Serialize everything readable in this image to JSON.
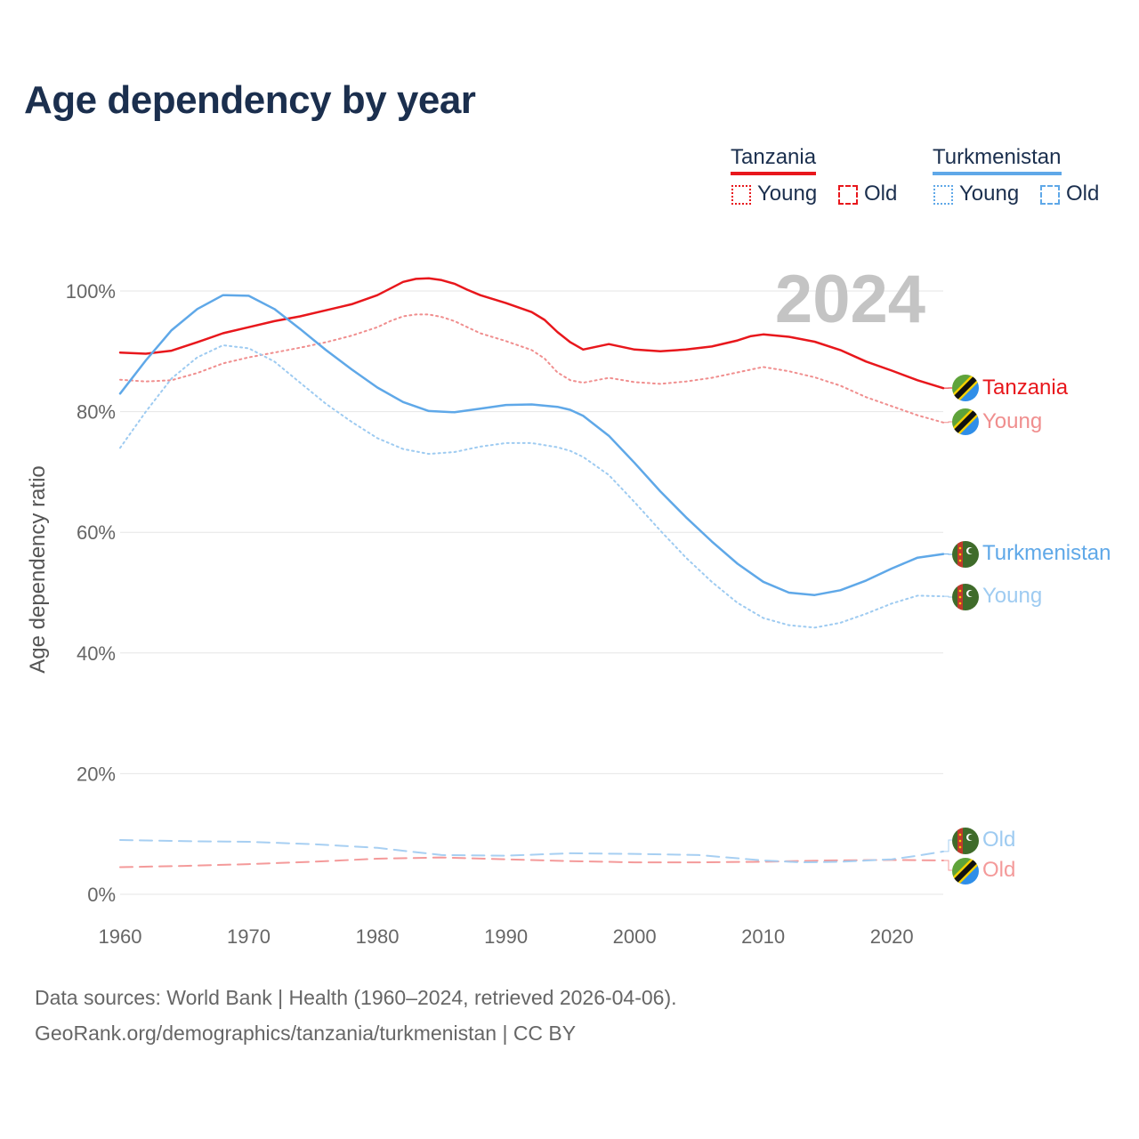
{
  "title": "Age dependency by year",
  "legend": {
    "countries": [
      {
        "name": "Tanzania",
        "color": "#e8171c"
      },
      {
        "name": "Turkmenistan",
        "color": "#5fa8e8"
      }
    ],
    "young_label": "Young",
    "old_label": "Old"
  },
  "year_label": "2024",
  "source_line1": "Data sources: World Bank | Health (1960–2024, retrieved 2026-04-06).",
  "source_line2": "GeoRank.org/demographics/tanzania/turkmenistan | CC BY",
  "end_labels": {
    "tanzania_total": "Tanzania",
    "tanzania_young": "Young",
    "tanzania_old": "Old",
    "turkmenistan_total": "Turkmenistan",
    "turkmenistan_young": "Young",
    "turkmenistan_old": "Old"
  },
  "chart_data": {
    "type": "line",
    "title": "Age dependency by year",
    "ylabel": "Age dependency ratio",
    "xlabel": "",
    "xlim": [
      1960,
      2024
    ],
    "ylim": [
      0,
      100
    ],
    "x_ticks": [
      1960,
      1970,
      1980,
      1990,
      2000,
      2010,
      2020
    ],
    "x_tick_labels": [
      "1960",
      "1970",
      "1980",
      "1990",
      "2000",
      "2010",
      "2020"
    ],
    "y_ticks": [
      0,
      20,
      40,
      60,
      80,
      100
    ],
    "y_tick_labels": [
      "0%",
      "20%",
      "40%",
      "60%",
      "80%",
      "100%"
    ],
    "grid": true,
    "series": [
      {
        "name": "Tanzania",
        "kind": "total",
        "color": "#e8171c",
        "dash": "solid",
        "opacity": 1,
        "points": [
          [
            1960,
            89.8
          ],
          [
            1962,
            89.6
          ],
          [
            1964,
            90.1
          ],
          [
            1966,
            91.5
          ],
          [
            1968,
            93
          ],
          [
            1970,
            94
          ],
          [
            1972,
            95
          ],
          [
            1974,
            95.8
          ],
          [
            1976,
            96.8
          ],
          [
            1978,
            97.8
          ],
          [
            1980,
            99.3
          ],
          [
            1981,
            100.4
          ],
          [
            1982,
            101.5
          ],
          [
            1983,
            102
          ],
          [
            1984,
            102.1
          ],
          [
            1985,
            101.8
          ],
          [
            1986,
            101.2
          ],
          [
            1987,
            100.2
          ],
          [
            1988,
            99.3
          ],
          [
            1990,
            98
          ],
          [
            1992,
            96.5
          ],
          [
            1993,
            95.2
          ],
          [
            1994,
            93.2
          ],
          [
            1995,
            91.5
          ],
          [
            1996,
            90.3
          ],
          [
            1998,
            91.2
          ],
          [
            2000,
            90.3
          ],
          [
            2002,
            90
          ],
          [
            2004,
            90.3
          ],
          [
            2006,
            90.8
          ],
          [
            2008,
            91.8
          ],
          [
            2009,
            92.5
          ],
          [
            2010,
            92.8
          ],
          [
            2012,
            92.4
          ],
          [
            2014,
            91.6
          ],
          [
            2016,
            90.2
          ],
          [
            2018,
            88.3
          ],
          [
            2020,
            86.8
          ],
          [
            2022,
            85.2
          ],
          [
            2024,
            83.9
          ]
        ]
      },
      {
        "name": "Tanzania Young",
        "kind": "young",
        "color": "#f08e8e",
        "dash": "dotted",
        "opacity": 1,
        "points": [
          [
            1960,
            85.3
          ],
          [
            1962,
            85
          ],
          [
            1964,
            85.2
          ],
          [
            1966,
            86.4
          ],
          [
            1968,
            88
          ],
          [
            1970,
            89
          ],
          [
            1972,
            89.8
          ],
          [
            1974,
            90.6
          ],
          [
            1976,
            91.5
          ],
          [
            1978,
            92.6
          ],
          [
            1980,
            94
          ],
          [
            1981,
            95
          ],
          [
            1982,
            95.8
          ],
          [
            1983,
            96.1
          ],
          [
            1984,
            96.1
          ],
          [
            1985,
            95.7
          ],
          [
            1986,
            95
          ],
          [
            1987,
            94
          ],
          [
            1988,
            93
          ],
          [
            1990,
            91.7
          ],
          [
            1992,
            90.2
          ],
          [
            1993,
            88.8
          ],
          [
            1994,
            86.5
          ],
          [
            1995,
            85.2
          ],
          [
            1996,
            84.8
          ],
          [
            1998,
            85.6
          ],
          [
            2000,
            84.9
          ],
          [
            2002,
            84.6
          ],
          [
            2004,
            85
          ],
          [
            2006,
            85.6
          ],
          [
            2008,
            86.5
          ],
          [
            2010,
            87.4
          ],
          [
            2012,
            86.7
          ],
          [
            2014,
            85.7
          ],
          [
            2016,
            84.3
          ],
          [
            2018,
            82.4
          ],
          [
            2020,
            80.9
          ],
          [
            2022,
            79.4
          ],
          [
            2024,
            78.2
          ]
        ]
      },
      {
        "name": "Tanzania Old",
        "kind": "old",
        "color": "#f49a9a",
        "dash": "dashed",
        "opacity": 1,
        "points": [
          [
            1960,
            4.5
          ],
          [
            1965,
            4.7
          ],
          [
            1970,
            5
          ],
          [
            1975,
            5.4
          ],
          [
            1980,
            5.9
          ],
          [
            1985,
            6.1
          ],
          [
            1990,
            5.8
          ],
          [
            1995,
            5.5
          ],
          [
            2000,
            5.3
          ],
          [
            2005,
            5.3
          ],
          [
            2010,
            5.4
          ],
          [
            2015,
            5.6
          ],
          [
            2020,
            5.7
          ],
          [
            2024,
            5.6
          ]
        ]
      },
      {
        "name": "Turkmenistan",
        "kind": "total",
        "color": "#5fa8e8",
        "dash": "solid",
        "opacity": 1,
        "points": [
          [
            1960,
            83
          ],
          [
            1962,
            88.5
          ],
          [
            1964,
            93.5
          ],
          [
            1966,
            97
          ],
          [
            1968,
            99.3
          ],
          [
            1970,
            99.2
          ],
          [
            1972,
            97
          ],
          [
            1974,
            93.7
          ],
          [
            1976,
            90.2
          ],
          [
            1978,
            87
          ],
          [
            1980,
            84
          ],
          [
            1982,
            81.6
          ],
          [
            1984,
            80.1
          ],
          [
            1986,
            79.9
          ],
          [
            1988,
            80.5
          ],
          [
            1990,
            81.1
          ],
          [
            1992,
            81.2
          ],
          [
            1994,
            80.8
          ],
          [
            1995,
            80.3
          ],
          [
            1996,
            79.3
          ],
          [
            1998,
            76
          ],
          [
            2000,
            71.5
          ],
          [
            2002,
            66.8
          ],
          [
            2004,
            62.5
          ],
          [
            2006,
            58.5
          ],
          [
            2008,
            54.8
          ],
          [
            2010,
            51.8
          ],
          [
            2012,
            50
          ],
          [
            2014,
            49.6
          ],
          [
            2016,
            50.4
          ],
          [
            2018,
            52
          ],
          [
            2020,
            54
          ],
          [
            2022,
            55.8
          ],
          [
            2024,
            56.4
          ]
        ]
      },
      {
        "name": "Turkmenistan Young",
        "kind": "young",
        "color": "#9ecbf1",
        "dash": "dotted",
        "opacity": 1,
        "points": [
          [
            1960,
            74
          ],
          [
            1962,
            80
          ],
          [
            1964,
            85.5
          ],
          [
            1966,
            89
          ],
          [
            1968,
            91
          ],
          [
            1970,
            90.5
          ],
          [
            1972,
            88.3
          ],
          [
            1974,
            84.8
          ],
          [
            1976,
            81.3
          ],
          [
            1978,
            78.3
          ],
          [
            1980,
            75.6
          ],
          [
            1982,
            73.8
          ],
          [
            1984,
            73
          ],
          [
            1986,
            73.3
          ],
          [
            1988,
            74.2
          ],
          [
            1990,
            74.8
          ],
          [
            1992,
            74.8
          ],
          [
            1994,
            74.1
          ],
          [
            1995,
            73.5
          ],
          [
            1996,
            72.5
          ],
          [
            1998,
            69.5
          ],
          [
            2000,
            65
          ],
          [
            2002,
            60.3
          ],
          [
            2004,
            55.8
          ],
          [
            2006,
            51.8
          ],
          [
            2008,
            48.3
          ],
          [
            2010,
            45.8
          ],
          [
            2012,
            44.6
          ],
          [
            2014,
            44.2
          ],
          [
            2016,
            45
          ],
          [
            2018,
            46.5
          ],
          [
            2020,
            48.2
          ],
          [
            2022,
            49.5
          ],
          [
            2024,
            49.4
          ]
        ]
      },
      {
        "name": "Turkmenistan Old",
        "kind": "old",
        "color": "#a7cff2",
        "dash": "dashed",
        "opacity": 1,
        "points": [
          [
            1960,
            9
          ],
          [
            1965,
            8.8
          ],
          [
            1970,
            8.7
          ],
          [
            1975,
            8.3
          ],
          [
            1980,
            7.7
          ],
          [
            1985,
            6.5
          ],
          [
            1990,
            6.4
          ],
          [
            1995,
            6.8
          ],
          [
            2000,
            6.7
          ],
          [
            2005,
            6.5
          ],
          [
            2010,
            5.6
          ],
          [
            2013,
            5.3
          ],
          [
            2016,
            5.4
          ],
          [
            2020,
            5.8
          ],
          [
            2022,
            6.4
          ],
          [
            2024,
            7.1
          ]
        ]
      }
    ]
  }
}
